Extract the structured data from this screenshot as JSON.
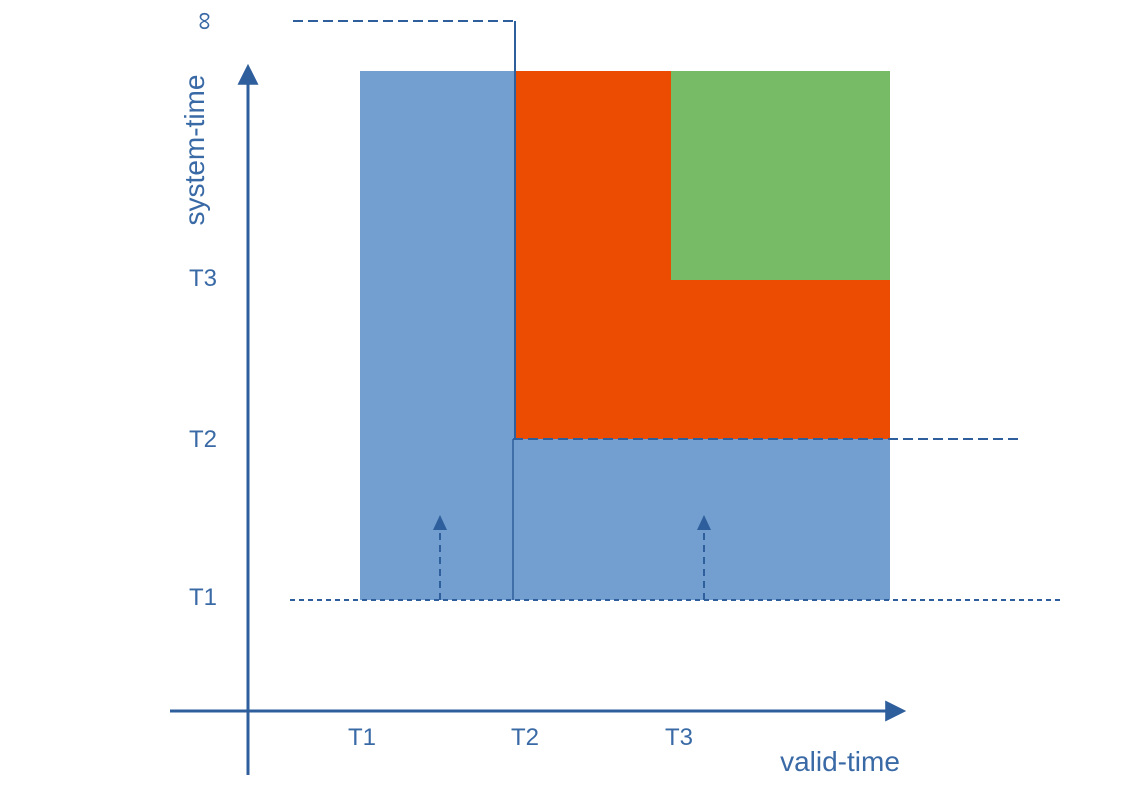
{
  "axes": {
    "x_label": "valid-time",
    "y_label": "system-time",
    "x_ticks": [
      "T1",
      "T2",
      "T3"
    ],
    "y_ticks": [
      "T1",
      "T2",
      "T3"
    ],
    "y_top_label": "∞"
  },
  "colors": {
    "axis": "#2e5f9c",
    "label": "#3a6aa6",
    "blue_region": "#729fcf",
    "red_region": "#ec4c02",
    "green_region": "#77bb66"
  }
}
